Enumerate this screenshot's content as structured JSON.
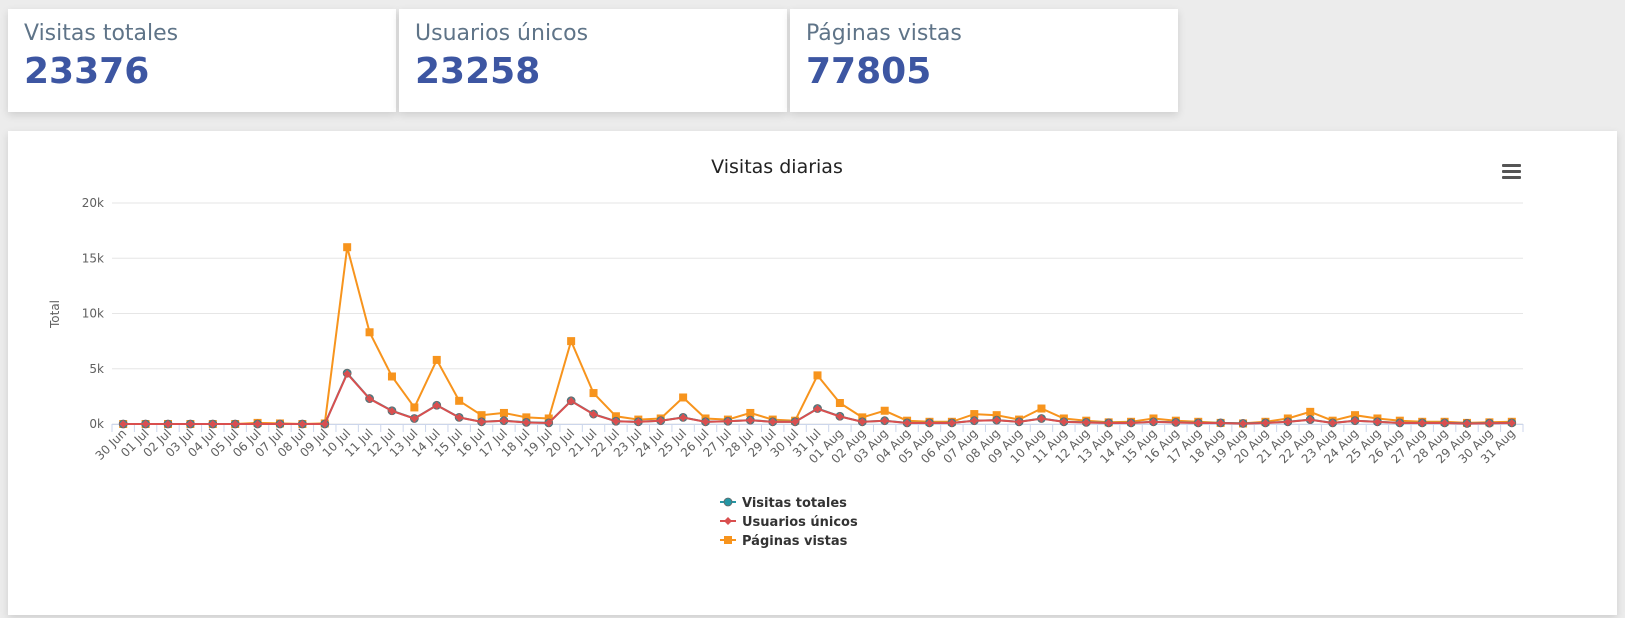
{
  "cards": [
    {
      "label": "Visitas totales",
      "value": "23376"
    },
    {
      "label": "Usuarios únicos",
      "value": "23258"
    },
    {
      "label": "Páginas vistas",
      "value": "77805"
    }
  ],
  "colors": {
    "visitas_totales": "#2596a4",
    "usuarios_unicos": "#d94f4f",
    "paginas_vistas": "#f7941d",
    "card_value": "#3d56a2"
  },
  "chart_data": {
    "type": "line",
    "title": "Visitas diarias",
    "ylabel": "Total",
    "ylim": [
      0,
      20000
    ],
    "yticks": [
      0,
      5000,
      10000,
      15000,
      20000
    ],
    "ytick_labels": [
      "0k",
      "5k",
      "10k",
      "15k",
      "20k"
    ],
    "grid": true,
    "legend_position": "bottom-center",
    "menu_icon": "hamburger-menu-icon",
    "categories": [
      "30 Jun",
      "01 Jul",
      "02 Jul",
      "03 Jul",
      "04 Jul",
      "05 Jul",
      "06 Jul",
      "07 Jul",
      "08 Jul",
      "09 Jul",
      "10 Jul",
      "11 Jul",
      "12 Jul",
      "13 Jul",
      "14 Jul",
      "15 Jul",
      "16 Jul",
      "17 Jul",
      "18 Jul",
      "19 Jul",
      "20 Jul",
      "21 Jul",
      "22 Jul",
      "23 Jul",
      "24 Jul",
      "25 Jul",
      "26 Jul",
      "27 Jul",
      "28 Jul",
      "29 Jul",
      "30 Jul",
      "31 Jul",
      "01 Aug",
      "02 Aug",
      "03 Aug",
      "04 Aug",
      "05 Aug",
      "06 Aug",
      "07 Aug",
      "08 Aug",
      "09 Aug",
      "10 Aug",
      "11 Aug",
      "12 Aug",
      "13 Aug",
      "14 Aug",
      "15 Aug",
      "16 Aug",
      "17 Aug",
      "18 Aug",
      "19 Aug",
      "20 Aug",
      "21 Aug",
      "22 Aug",
      "23 Aug",
      "24 Aug",
      "25 Aug",
      "26 Aug",
      "27 Aug",
      "28 Aug",
      "29 Aug",
      "30 Aug",
      "31 Aug"
    ],
    "series": [
      {
        "name": "Visitas totales",
        "marker": "circle",
        "values": [
          0,
          0,
          0,
          0,
          0,
          0,
          0,
          0,
          0,
          0,
          4600,
          2300,
          1200,
          500,
          1700,
          600,
          200,
          300,
          150,
          100,
          2100,
          900,
          250,
          200,
          300,
          600,
          200,
          250,
          350,
          200,
          200,
          1400,
          700,
          200,
          300,
          100,
          100,
          100,
          300,
          350,
          200,
          500,
          200,
          150,
          100,
          100,
          200,
          150,
          100,
          100,
          50,
          100,
          200,
          400,
          100,
          300,
          200,
          100,
          100,
          100,
          50,
          80,
          100
        ]
      },
      {
        "name": "Usuarios únicos",
        "marker": "diamond",
        "values": [
          0,
          0,
          0,
          0,
          0,
          0,
          0,
          0,
          0,
          0,
          4550,
          2280,
          1180,
          490,
          1690,
          590,
          190,
          290,
          140,
          90,
          2080,
          880,
          240,
          190,
          290,
          590,
          190,
          240,
          340,
          190,
          190,
          1380,
          680,
          190,
          290,
          90,
          90,
          90,
          290,
          340,
          190,
          490,
          190,
          140,
          90,
          90,
          190,
          140,
          90,
          90,
          40,
          90,
          190,
          390,
          90,
          290,
          190,
          90,
          90,
          90,
          40,
          70,
          90
        ]
      },
      {
        "name": "Páginas vistas",
        "marker": "square",
        "values": [
          0,
          0,
          0,
          0,
          0,
          0,
          100,
          50,
          0,
          50,
          16000,
          8300,
          4300,
          1500,
          5800,
          2100,
          800,
          1000,
          600,
          500,
          7500,
          2800,
          700,
          400,
          500,
          2400,
          500,
          400,
          1000,
          400,
          300,
          4400,
          1900,
          600,
          1200,
          300,
          200,
          200,
          900,
          800,
          400,
          1400,
          500,
          300,
          150,
          200,
          500,
          300,
          200,
          100,
          50,
          200,
          500,
          1100,
          300,
          800,
          500,
          300,
          200,
          200,
          100,
          150,
          200
        ]
      }
    ]
  }
}
